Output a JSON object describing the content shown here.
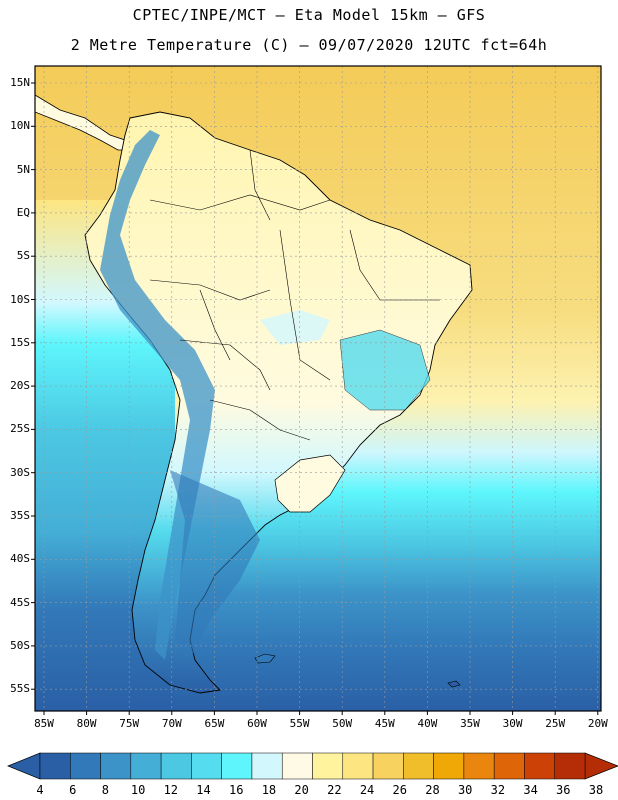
{
  "header": {
    "line1": "CPTEC/INPE/MCT –  Eta Model 15km – GFS",
    "line2": "2 Metre Temperature (C) – 09/07/2020 12UTC fct=64h"
  },
  "axes": {
    "lat_labels": [
      "15N",
      "10N",
      "5N",
      "EQ",
      "5S",
      "10S",
      "15S",
      "20S",
      "25S",
      "30S",
      "35S",
      "40S",
      "45S",
      "50S",
      "55S"
    ],
    "lon_labels": [
      "85W",
      "80W",
      "75W",
      "70W",
      "65W",
      "60W",
      "55W",
      "50W",
      "45W",
      "40W",
      "35W",
      "30W",
      "25W",
      "20W"
    ]
  },
  "colorbar": {
    "labels": [
      "4",
      "6",
      "8",
      "10",
      "12",
      "14",
      "16",
      "18",
      "20",
      "22",
      "24",
      "26",
      "28",
      "30",
      "32",
      "34",
      "36",
      "38"
    ],
    "colors": [
      "#2a5fa6",
      "#3279b9",
      "#3c93c8",
      "#44aed6",
      "#4cc8e3",
      "#55dcee",
      "#5ef6fc",
      "#d2f8fe",
      "#fffae6",
      "#fff49d",
      "#fde581",
      "#f7d25e",
      "#f0bd2b",
      "#efa806",
      "#ea860e",
      "#de6608",
      "#cc4206",
      "#b52d06"
    ]
  },
  "map_colors": {
    "ocean_north": "#f6d36a",
    "ocean_south_deep": "#2a5fa6",
    "land_light": "#fffbe0",
    "coast_line": "#000000",
    "grid_line": "#9a9a9a"
  }
}
